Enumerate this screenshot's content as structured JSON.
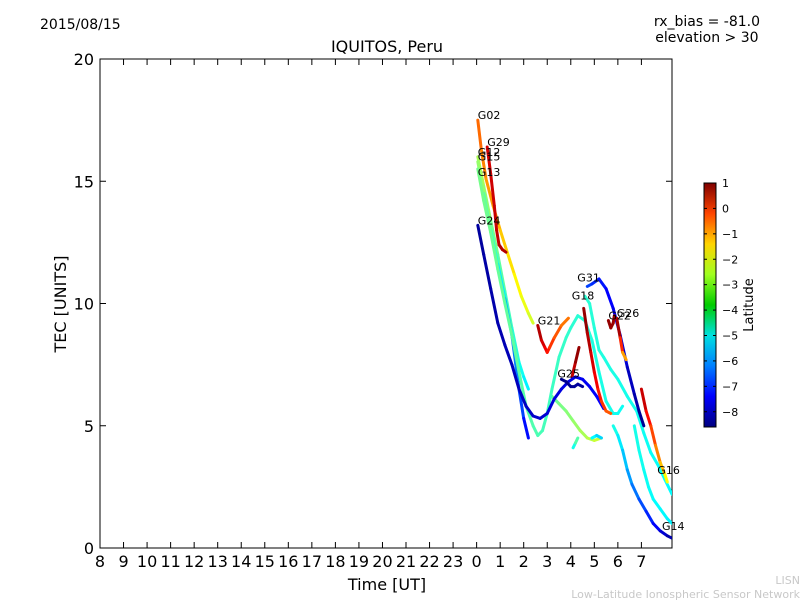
{
  "header": {
    "date": "2015/08/15",
    "rx_bias": "rx_bias = -81.0",
    "elevation": "elevation > 30"
  },
  "credit": {
    "line1": "LISN",
    "line2": "Low-Latitude Ionospheric Sensor Network"
  },
  "chart_data": {
    "type": "line",
    "title": "IQUITOS, Peru",
    "xlabel": "Time [UT]",
    "ylabel": "TEC [UNITS]",
    "x_ticks": [
      "8",
      "9",
      "10",
      "11",
      "12",
      "13",
      "14",
      "15",
      "16",
      "17",
      "18",
      "19",
      "20",
      "21",
      "22",
      "23",
      "0",
      "1",
      "2",
      "3",
      "4",
      "5",
      "6",
      "7"
    ],
    "xlim_hours_from_8UT": [
      0,
      24.3
    ],
    "y_ticks": [
      0,
      5,
      10,
      15,
      20
    ],
    "ylim": [
      0,
      20
    ],
    "grid": false,
    "colorbar": {
      "label": "Latitude",
      "ticks": [
        1,
        0,
        -1,
        -2,
        -3,
        -4,
        -5,
        -6,
        -7,
        -8
      ],
      "range": [
        -8.6,
        1.0
      ],
      "colormap": "jet"
    },
    "series": [
      {
        "name": "G02",
        "lat_start": -1.2,
        "lat_end": -3.0,
        "points": [
          [
            0.05,
            17.5
          ],
          [
            0.2,
            16.3
          ],
          [
            0.4,
            15.1
          ],
          [
            0.7,
            14.0
          ],
          [
            1.0,
            13.0
          ],
          [
            1.3,
            12.1
          ],
          [
            1.6,
            11.2
          ],
          [
            1.9,
            10.3
          ],
          [
            2.2,
            9.6
          ],
          [
            2.4,
            9.2
          ]
        ]
      },
      {
        "name": "G29",
        "lat_start": 0.2,
        "lat_end": 0.5,
        "points": [
          [
            0.45,
            16.4
          ],
          [
            0.6,
            15.3
          ],
          [
            0.75,
            14.0
          ],
          [
            0.85,
            13.0
          ],
          [
            0.95,
            12.4
          ],
          [
            1.1,
            12.2
          ],
          [
            1.25,
            12.1
          ]
        ]
      },
      {
        "name": "G12",
        "lat_start": -3.4,
        "lat_end": -5.1,
        "points": [
          [
            0.05,
            16.0
          ],
          [
            0.3,
            14.8
          ],
          [
            0.6,
            13.4
          ],
          [
            0.9,
            12.0
          ],
          [
            1.2,
            10.5
          ],
          [
            1.5,
            9.0
          ],
          [
            1.8,
            7.6
          ],
          [
            2.0,
            7.0
          ],
          [
            2.2,
            6.5
          ]
        ]
      },
      {
        "name": "G15",
        "lat_start": -3.6,
        "lat_end": -7.3,
        "points": [
          [
            0.05,
            15.8
          ],
          [
            0.3,
            14.5
          ],
          [
            0.6,
            13.0
          ],
          [
            0.9,
            11.6
          ],
          [
            1.2,
            10.2
          ],
          [
            1.5,
            8.7
          ],
          [
            1.8,
            6.5
          ],
          [
            2.0,
            5.3
          ],
          [
            2.2,
            4.5
          ]
        ]
      },
      {
        "name": "G13",
        "lat_start": -3.9,
        "lat_end": -4.9,
        "points": [
          [
            0.05,
            15.5
          ],
          [
            0.3,
            14.2
          ],
          [
            0.6,
            12.9
          ],
          [
            0.9,
            11.4
          ],
          [
            1.2,
            10.0
          ],
          [
            1.5,
            8.7
          ],
          [
            1.8,
            7.2
          ],
          [
            2.1,
            5.8
          ],
          [
            2.4,
            5.0
          ],
          [
            2.6,
            4.6
          ],
          [
            2.8,
            4.8
          ],
          [
            3.0,
            5.5
          ],
          [
            3.2,
            6.5
          ],
          [
            3.5,
            7.8
          ],
          [
            3.8,
            8.6
          ],
          [
            4.0,
            9.0
          ],
          [
            4.3,
            9.5
          ],
          [
            4.6,
            9.3
          ],
          [
            4.9,
            8.5
          ],
          [
            5.2,
            7.2
          ],
          [
            5.5,
            6.0
          ],
          [
            5.8,
            5.5
          ],
          [
            6.0,
            5.5
          ],
          [
            6.2,
            5.8
          ]
        ]
      },
      {
        "name": "G24",
        "lat_start": -8.3,
        "lat_end": -7.4,
        "points": [
          [
            0.05,
            13.2
          ],
          [
            0.3,
            12.0
          ],
          [
            0.6,
            10.6
          ],
          [
            0.9,
            9.2
          ],
          [
            1.2,
            8.3
          ],
          [
            1.5,
            7.5
          ],
          [
            1.8,
            6.5
          ],
          [
            2.1,
            5.8
          ],
          [
            2.4,
            5.4
          ],
          [
            2.7,
            5.3
          ],
          [
            3.0,
            5.5
          ],
          [
            3.3,
            6.1
          ],
          [
            3.6,
            6.5
          ],
          [
            3.9,
            6.8
          ],
          [
            4.2,
            7.0
          ],
          [
            4.5,
            6.9
          ],
          [
            4.8,
            6.6
          ],
          [
            5.1,
            6.2
          ],
          [
            5.4,
            5.7
          ]
        ]
      },
      {
        "name": "G21",
        "lat_start": 0.5,
        "lat_end": -1.3,
        "points": [
          [
            2.6,
            9.1
          ],
          [
            2.75,
            8.5
          ],
          [
            2.9,
            8.2
          ],
          [
            3.0,
            8.0
          ],
          [
            3.1,
            8.2
          ],
          [
            3.3,
            8.6
          ],
          [
            3.6,
            9.1
          ],
          [
            3.9,
            9.4
          ]
        ]
      },
      {
        "name": "G18",
        "lat_start": 0.8,
        "lat_end": -1.0,
        "points": [
          [
            4.55,
            9.8
          ],
          [
            4.7,
            8.8
          ],
          [
            4.85,
            8.0
          ],
          [
            5.0,
            7.2
          ],
          [
            5.15,
            6.5
          ],
          [
            5.3,
            6.0
          ],
          [
            5.5,
            5.6
          ],
          [
            5.7,
            5.5
          ]
        ]
      },
      {
        "name": "G31",
        "lat_start": -6.8,
        "lat_end": -8.4,
        "points": [
          [
            4.7,
            10.7
          ],
          [
            4.9,
            10.8
          ],
          [
            5.2,
            11.0
          ],
          [
            5.5,
            10.6
          ],
          [
            5.8,
            9.8
          ],
          [
            6.1,
            8.7
          ],
          [
            6.4,
            7.4
          ],
          [
            6.7,
            6.3
          ],
          [
            6.9,
            5.6
          ],
          [
            7.1,
            5.0
          ]
        ]
      },
      {
        "name": "G22",
        "lat_start": 0.8,
        "lat_end": 0.7,
        "points": [
          [
            5.6,
            9.3
          ],
          [
            5.7,
            9.0
          ],
          [
            5.8,
            9.2
          ],
          [
            5.85,
            9.5
          ]
        ]
      },
      {
        "name": "G26",
        "lat_start": 0.6,
        "lat_end": -1.7,
        "points": [
          [
            5.95,
            9.4
          ],
          [
            6.1,
            8.6
          ],
          [
            6.2,
            8.0
          ],
          [
            6.35,
            7.7
          ]
        ]
      },
      {
        "name": "G25",
        "lat_start": -8.5,
        "lat_end": -8.3,
        "points": [
          [
            3.6,
            6.9
          ],
          [
            3.8,
            6.8
          ],
          [
            4.0,
            6.6
          ],
          [
            4.15,
            6.6
          ],
          [
            4.3,
            6.7
          ],
          [
            4.5,
            6.6
          ]
        ]
      },
      {
        "name": "G16",
        "lat_start": 0.3,
        "lat_end": -2.6,
        "points": [
          [
            7.0,
            6.5
          ],
          [
            7.2,
            5.6
          ],
          [
            7.4,
            5.0
          ],
          [
            7.6,
            4.2
          ],
          [
            7.8,
            3.5
          ],
          [
            8.0,
            3.0
          ],
          [
            8.1,
            2.7
          ]
        ]
      },
      {
        "name": "G14",
        "lat_start": -4.8,
        "lat_end": -8.2,
        "points": [
          [
            5.8,
            5.0
          ],
          [
            6.0,
            4.6
          ],
          [
            6.2,
            4.0
          ],
          [
            6.4,
            3.2
          ],
          [
            6.6,
            2.6
          ],
          [
            6.9,
            2.0
          ],
          [
            7.2,
            1.5
          ],
          [
            7.5,
            1.0
          ],
          [
            7.8,
            0.7
          ],
          [
            8.1,
            0.5
          ],
          [
            8.3,
            0.4
          ]
        ]
      }
    ],
    "unlabeled_traces": [
      {
        "lat_start": -4.0,
        "lat_end": -3.1,
        "points": [
          [
            3.2,
            6.2
          ],
          [
            3.5,
            5.9
          ],
          [
            3.8,
            5.6
          ],
          [
            4.1,
            5.2
          ],
          [
            4.4,
            4.8
          ],
          [
            4.7,
            4.5
          ],
          [
            5.0,
            4.4
          ],
          [
            5.3,
            4.5
          ]
        ]
      },
      {
        "lat_start": -5.0,
        "lat_end": -5.4,
        "points": [
          [
            4.9,
            4.5
          ],
          [
            5.1,
            4.6
          ],
          [
            5.3,
            4.5
          ]
        ]
      },
      {
        "lat_start": -4.8,
        "lat_end": -4.2,
        "points": [
          [
            4.1,
            4.1
          ],
          [
            4.2,
            4.3
          ],
          [
            4.3,
            4.5
          ]
        ]
      },
      {
        "lat_start": 0.4,
        "lat_end": 0.8,
        "points": [
          [
            4.05,
            7.0
          ],
          [
            4.2,
            7.6
          ],
          [
            4.35,
            8.2
          ]
        ]
      },
      {
        "lat_start": -4.6,
        "lat_end": -5.0,
        "points": [
          [
            4.6,
            10.3
          ],
          [
            4.8,
            10.0
          ],
          [
            5.0,
            9.0
          ],
          [
            5.2,
            8.1
          ],
          [
            5.4,
            7.8
          ],
          [
            5.7,
            7.3
          ],
          [
            6.0,
            6.9
          ],
          [
            6.4,
            6.2
          ],
          [
            6.8,
            5.6
          ],
          [
            7.1,
            4.7
          ],
          [
            7.4,
            3.9
          ],
          [
            7.7,
            3.4
          ],
          [
            8.0,
            2.8
          ],
          [
            8.3,
            2.2
          ]
        ]
      },
      {
        "lat_start": -4.8,
        "lat_end": -5.1,
        "points": [
          [
            6.7,
            5.0
          ],
          [
            6.9,
            4.0
          ],
          [
            7.1,
            3.2
          ],
          [
            7.3,
            2.5
          ],
          [
            7.5,
            2.0
          ],
          [
            7.8,
            1.6
          ],
          [
            8.1,
            1.2
          ],
          [
            8.3,
            1.0
          ]
        ]
      }
    ]
  }
}
